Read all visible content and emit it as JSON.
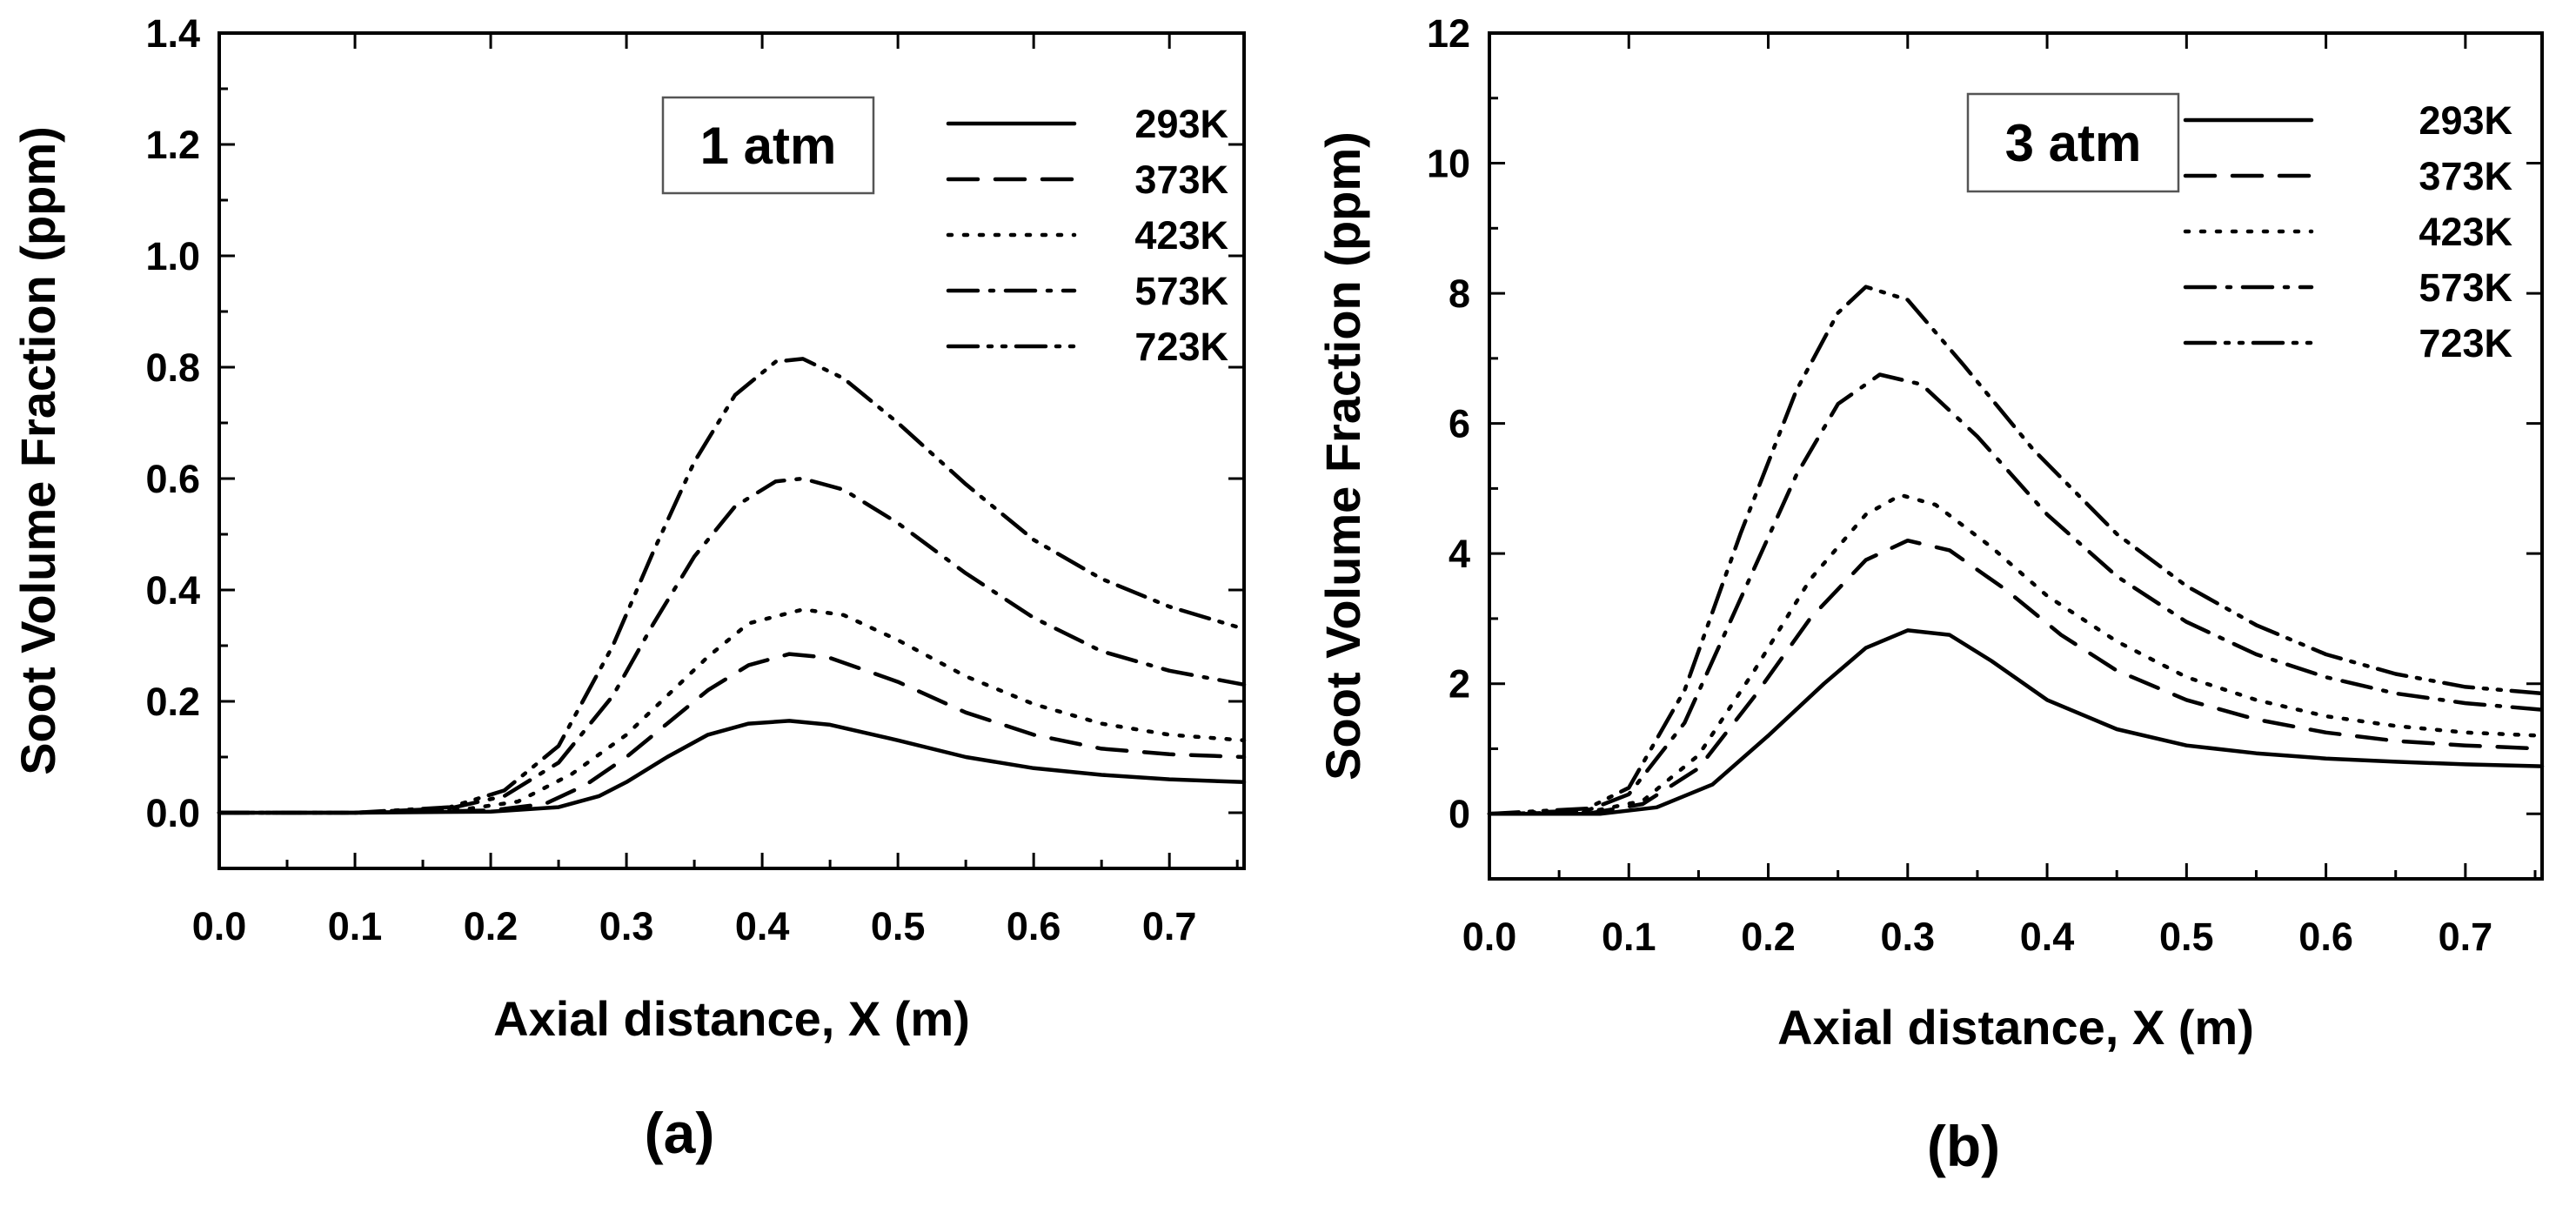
{
  "chart_data": [
    {
      "type": "line",
      "panel_label": "(a)",
      "annotation": "1 atm",
      "xlabel": "Axial distance, X (m)",
      "ylabel": "Soot Volume Fraction (ppm)",
      "xlim": [
        0.0,
        0.755
      ],
      "ylim": [
        -0.1,
        1.4
      ],
      "xticks": [
        0.0,
        0.1,
        0.2,
        0.3,
        0.4,
        0.5,
        0.6,
        0.7
      ],
      "xtick_labels": [
        "0.0",
        "0.1",
        "0.2",
        "0.3",
        "0.4",
        "0.5",
        "0.6",
        "0.7"
      ],
      "yticks": [
        0.0,
        0.2,
        0.4,
        0.6,
        0.8,
        1.0,
        1.2,
        1.4
      ],
      "ytick_labels": [
        "0.0",
        "0.2",
        "0.4",
        "0.6",
        "0.8",
        "1.0",
        "1.2",
        "1.4"
      ],
      "legend_position": "top-right",
      "series": [
        {
          "name": "293K",
          "style": "solid",
          "x": [
            0.0,
            0.1,
            0.2,
            0.25,
            0.28,
            0.3,
            0.33,
            0.36,
            0.39,
            0.42,
            0.45,
            0.5,
            0.55,
            0.6,
            0.65,
            0.7,
            0.755
          ],
          "y": [
            0.0,
            0.0,
            0.002,
            0.01,
            0.03,
            0.055,
            0.1,
            0.14,
            0.16,
            0.165,
            0.158,
            0.13,
            0.1,
            0.08,
            0.068,
            0.06,
            0.055
          ]
        },
        {
          "name": "373K",
          "style": "dash",
          "x": [
            0.0,
            0.1,
            0.2,
            0.24,
            0.27,
            0.3,
            0.33,
            0.36,
            0.39,
            0.42,
            0.45,
            0.5,
            0.55,
            0.6,
            0.65,
            0.7,
            0.755
          ],
          "y": [
            0.0,
            0.0,
            0.004,
            0.016,
            0.05,
            0.1,
            0.16,
            0.22,
            0.265,
            0.285,
            0.278,
            0.235,
            0.18,
            0.14,
            0.115,
            0.105,
            0.1
          ]
        },
        {
          "name": "423K",
          "style": "dot",
          "x": [
            0.0,
            0.1,
            0.18,
            0.22,
            0.26,
            0.3,
            0.33,
            0.36,
            0.39,
            0.43,
            0.46,
            0.5,
            0.55,
            0.6,
            0.65,
            0.7,
            0.755
          ],
          "y": [
            0.0,
            0.0,
            0.006,
            0.02,
            0.07,
            0.14,
            0.21,
            0.28,
            0.34,
            0.365,
            0.355,
            0.31,
            0.245,
            0.195,
            0.16,
            0.14,
            0.13
          ]
        },
        {
          "name": "573K",
          "style": "dashdot",
          "x": [
            0.0,
            0.1,
            0.17,
            0.21,
            0.25,
            0.29,
            0.32,
            0.35,
            0.38,
            0.41,
            0.43,
            0.46,
            0.5,
            0.55,
            0.6,
            0.65,
            0.7,
            0.755
          ],
          "y": [
            0.0,
            0.0,
            0.008,
            0.03,
            0.09,
            0.21,
            0.34,
            0.46,
            0.55,
            0.595,
            0.6,
            0.58,
            0.52,
            0.43,
            0.35,
            0.29,
            0.255,
            0.23
          ]
        },
        {
          "name": "723K",
          "style": "dashdotdot",
          "x": [
            0.0,
            0.1,
            0.17,
            0.21,
            0.25,
            0.29,
            0.32,
            0.35,
            0.38,
            0.41,
            0.43,
            0.46,
            0.5,
            0.55,
            0.6,
            0.65,
            0.7,
            0.755
          ],
          "y": [
            0.0,
            0.0,
            0.01,
            0.04,
            0.12,
            0.3,
            0.47,
            0.63,
            0.75,
            0.81,
            0.815,
            0.78,
            0.7,
            0.59,
            0.49,
            0.42,
            0.37,
            0.33
          ]
        }
      ]
    },
    {
      "type": "line",
      "panel_label": "(b)",
      "annotation": "3 atm",
      "xlabel": "Axial distance, X (m)",
      "ylabel": "Soot Volume Fraction (ppm)",
      "xlim": [
        0.0,
        0.755
      ],
      "ylim": [
        -1,
        12
      ],
      "xticks": [
        0.0,
        0.1,
        0.2,
        0.3,
        0.4,
        0.5,
        0.6,
        0.7
      ],
      "xtick_labels": [
        "0.0",
        "0.1",
        "0.2",
        "0.3",
        "0.4",
        "0.5",
        "0.6",
        "0.7"
      ],
      "yticks": [
        0,
        2,
        4,
        6,
        8,
        10,
        12
      ],
      "ytick_labels": [
        "0",
        "2",
        "4",
        "6",
        "8",
        "10",
        "12"
      ],
      "legend_position": "top-right",
      "series": [
        {
          "name": "293K",
          "style": "solid",
          "x": [
            0.0,
            0.08,
            0.12,
            0.16,
            0.2,
            0.24,
            0.27,
            0.3,
            0.33,
            0.36,
            0.4,
            0.45,
            0.5,
            0.55,
            0.6,
            0.65,
            0.7,
            0.755
          ],
          "y": [
            0.0,
            0.0,
            0.1,
            0.45,
            1.2,
            2.0,
            2.55,
            2.82,
            2.75,
            2.35,
            1.75,
            1.3,
            1.05,
            0.93,
            0.85,
            0.8,
            0.76,
            0.73
          ]
        },
        {
          "name": "373K",
          "style": "dash",
          "x": [
            0.0,
            0.07,
            0.11,
            0.15,
            0.19,
            0.23,
            0.27,
            0.3,
            0.33,
            0.37,
            0.41,
            0.45,
            0.5,
            0.55,
            0.6,
            0.65,
            0.7,
            0.755
          ],
          "y": [
            0.0,
            0.0,
            0.15,
            0.7,
            1.8,
            3.0,
            3.9,
            4.2,
            4.05,
            3.45,
            2.75,
            2.2,
            1.75,
            1.45,
            1.25,
            1.12,
            1.05,
            1.0
          ]
        },
        {
          "name": "423K",
          "style": "dot",
          "x": [
            0.0,
            0.07,
            0.11,
            0.15,
            0.19,
            0.23,
            0.27,
            0.295,
            0.32,
            0.36,
            0.4,
            0.45,
            0.5,
            0.55,
            0.6,
            0.65,
            0.7,
            0.755
          ],
          "y": [
            0.0,
            0.02,
            0.2,
            0.9,
            2.2,
            3.6,
            4.6,
            4.9,
            4.75,
            4.1,
            3.35,
            2.65,
            2.1,
            1.75,
            1.5,
            1.35,
            1.25,
            1.2
          ]
        },
        {
          "name": "573K",
          "style": "dashdot",
          "x": [
            0.0,
            0.07,
            0.1,
            0.14,
            0.18,
            0.22,
            0.25,
            0.28,
            0.31,
            0.35,
            0.4,
            0.45,
            0.5,
            0.55,
            0.6,
            0.65,
            0.7,
            0.755
          ],
          "y": [
            0.0,
            0.05,
            0.3,
            1.4,
            3.3,
            5.2,
            6.3,
            6.75,
            6.6,
            5.8,
            4.6,
            3.65,
            2.95,
            2.45,
            2.1,
            1.85,
            1.7,
            1.6
          ]
        },
        {
          "name": "723K",
          "style": "dashdotdot",
          "x": [
            0.0,
            0.07,
            0.1,
            0.14,
            0.18,
            0.22,
            0.25,
            0.27,
            0.3,
            0.34,
            0.39,
            0.45,
            0.5,
            0.55,
            0.6,
            0.65,
            0.7,
            0.755
          ],
          "y": [
            0.0,
            0.08,
            0.4,
            1.9,
            4.3,
            6.5,
            7.7,
            8.1,
            7.9,
            6.9,
            5.6,
            4.3,
            3.5,
            2.9,
            2.45,
            2.15,
            1.95,
            1.85
          ]
        }
      ]
    }
  ]
}
